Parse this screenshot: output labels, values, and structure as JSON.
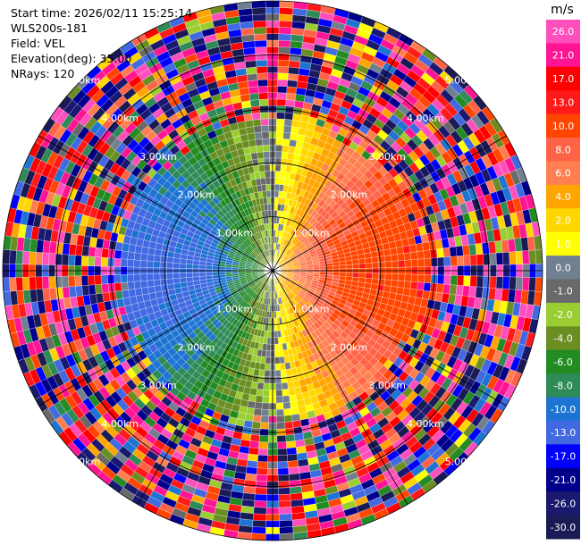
{
  "header": {
    "start_time": "Start time: 2026/02/11 15:25:14",
    "instrument": "WLS200s-181",
    "field": "Field: VEL",
    "elevation": "Elevation(deg): 35.00",
    "nrays": "NRays: 120"
  },
  "chart_data": {
    "type": "heatmap",
    "projection": "polar-ppi",
    "field": "VEL",
    "elevation_deg": 35.0,
    "n_rays": 120,
    "max_range_km": 5.0,
    "range_rings_km": [
      1,
      2,
      3,
      4,
      5
    ],
    "range_ring_labels": [
      "1.00km",
      "2.00km",
      "3.00km",
      "4.00km",
      "5.00km"
    ],
    "azimuth_spokes_deg": [
      0,
      30,
      60,
      90,
      120,
      150,
      180,
      210,
      240,
      270,
      300,
      330
    ],
    "velocity_pattern": {
      "description_note": "",
      "east_max_ms": 12.0,
      "west_min_ms": -11.0,
      "near_zero_north_south": true,
      "noise_beyond_km": 2.6
    },
    "colorbar": {
      "unit": "m/s",
      "ticks": [
        "26.0",
        "21.0",
        "17.0",
        "13.0",
        "10.0",
        "8.0",
        "6.0",
        "4.0",
        "2.0",
        "1.0",
        "0.0",
        "-1.0",
        "-2.0",
        "-4.0",
        "-6.0",
        "-8.0",
        "-10.0",
        "-13.0",
        "-17.0",
        "-21.0",
        "-26.0",
        "-30.0"
      ],
      "boundaries": [
        30,
        26,
        21,
        17,
        13,
        10,
        8,
        6,
        4,
        2,
        1,
        0,
        -1,
        -2,
        -4,
        -6,
        -8,
        -10,
        -13,
        -17,
        -21,
        -26,
        -30
      ],
      "colors": [
        "#ff4fbd",
        "#ff1493",
        "#ff0000",
        "#ff1a1a",
        "#ff4500",
        "#ff6347",
        "#ff7f50",
        "#ffa500",
        "#ffd700",
        "#ffff00",
        "#708090",
        "#696969",
        "#9acd32",
        "#6b8e23",
        "#228b22",
        "#2e8b57",
        "#1e74d2",
        "#4169e1",
        "#0000ff",
        "#00008b",
        "#191970",
        "#1a1a55"
      ]
    }
  }
}
